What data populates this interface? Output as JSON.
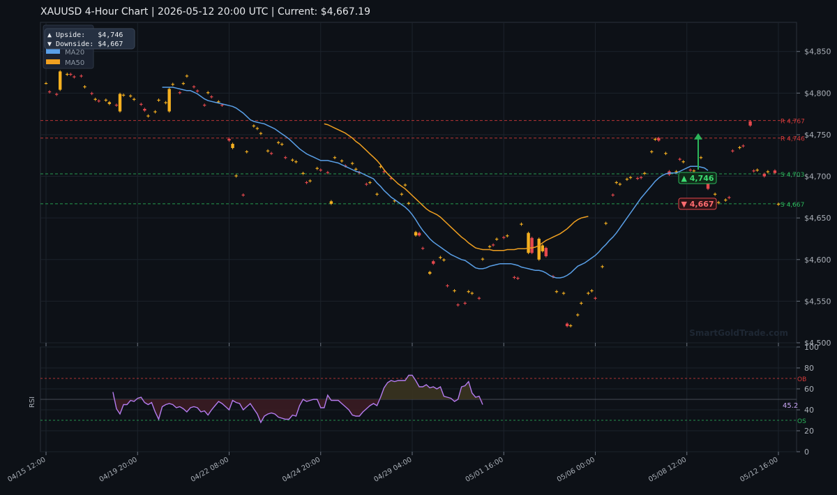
{
  "title": "XAUUSD  4-Hour Chart  |  2026-05-12 20:00 UTC  |  Current: $4,667.19",
  "watermark": "SmartGoldTrade.com",
  "info_box": {
    "upside": "▲ Upside:   $4,746",
    "downside": "▼ Downside: $4,667"
  },
  "legend": {
    "ma20": "MA20",
    "ma50": "MA50"
  },
  "colors": {
    "bg": "#0d1117",
    "grid": "#1c222b",
    "up": "#f5b020",
    "down": "#e5484d",
    "ma20": "#5aa0e8",
    "ma50": "#f0a020",
    "support": "#2bb55a",
    "resistance": "#d83b3b",
    "rsi": "#b57cf0",
    "text": "#aab0b8"
  },
  "chart_data": [
    {
      "type": "candlestick",
      "ylim": [
        4500,
        4885
      ],
      "yticks": [
        4500,
        4550,
        4600,
        4650,
        4700,
        4750,
        4800,
        4850
      ],
      "ytick_labels": [
        "$4,500",
        "$4,550",
        "$4,600",
        "$4,650",
        "$4,700",
        "$4,750",
        "$4,800",
        "$4,850"
      ],
      "xticks": [
        {
          "i": 0,
          "label": "04/15 12:00"
        },
        {
          "i": 26,
          "label": "04/19 20:00"
        },
        {
          "i": 52,
          "label": "04/22 08:00"
        },
        {
          "i": 78,
          "label": "04/24 20:00"
        },
        {
          "i": 104,
          "label": "04/29 04:00"
        },
        {
          "i": 130,
          "label": "05/01 16:00"
        },
        {
          "i": 156,
          "label": "05/06 00:00"
        },
        {
          "i": 182,
          "label": "05/08 12:00"
        },
        {
          "i": 208,
          "label": "05/12 16:00"
        }
      ],
      "closes": [
        4812,
        4801,
        4798,
        4826,
        4823,
        4822,
        4819,
        4820,
        4808,
        4799,
        4793,
        4790,
        4792,
        4789,
        4785,
        4799,
        4798,
        4797,
        4793,
        4786,
        4779,
        4773,
        4778,
        4792,
        4789,
        4805,
        4811,
        4800,
        4812,
        4821,
        4807,
        4802,
        4785,
        4801,
        4795,
        4790,
        4785,
        4743,
        4739,
        4701,
        4677,
        4730,
        4761,
        4758,
        4752,
        4731,
        4727,
        4741,
        4739,
        4722,
        4720,
        4718,
        4704,
        4692,
        4695,
        4710,
        4707,
        4704,
        4670,
        4723,
        4719,
        4712,
        4716,
        4709,
        4704,
        4690,
        4693,
        4679,
        4712,
        4705,
        4697,
        4671,
        4679,
        4690,
        4668,
        4633,
        4629,
        4613,
        4585,
        4595,
        4603,
        4600,
        4568,
        4563,
        4545,
        4547,
        4562,
        4560,
        4553,
        4601,
        4616,
        4617,
        4625,
        4626,
        4629,
        4578,
        4577,
        4643,
        4632,
        4608,
        4625,
        4617,
        4604,
        4579,
        4562,
        4560,
        4520,
        4521,
        4534,
        4548,
        4560,
        4563,
        4553,
        4592,
        4644,
        4677,
        4693,
        4691,
        4697,
        4699,
        4697,
        4698,
        4704,
        4730,
        4745,
        4743,
        4728,
        4702,
        4706,
        4720,
        4718,
        4707,
        4707,
        4723,
        4700,
        4685,
        4679,
        4669,
        4672,
        4674,
        4730,
        4735,
        4736,
        4761,
        4706,
        4708,
        4700,
        4706,
        4704,
        4667
      ],
      "opens": [
        4812,
        4802,
        4799,
        4804,
        4822,
        4823,
        4820,
        4821,
        4807,
        4800,
        4792,
        4791,
        4791,
        4787,
        4786,
        4778,
        4797,
        4796,
        4792,
        4787,
        4781,
        4772,
        4777,
        4791,
        4788,
        4778,
        4810,
        4801,
        4811,
        4820,
        4808,
        4803,
        4786,
        4800,
        4796,
        4789,
        4786,
        4745,
        4734,
        4700,
        4678,
        4729,
        4760,
        4757,
        4751,
        4730,
        4728,
        4740,
        4738,
        4723,
        4719,
        4717,
        4703,
        4693,
        4694,
        4709,
        4708,
        4705,
        4667,
        4722,
        4718,
        4713,
        4715,
        4708,
        4705,
        4691,
        4692,
        4678,
        4711,
        4706,
        4698,
        4670,
        4678,
        4689,
        4667,
        4629,
        4632,
        4614,
        4583,
        4598,
        4602,
        4599,
        4569,
        4562,
        4546,
        4548,
        4561,
        4559,
        4554,
        4600,
        4615,
        4618,
        4624,
        4627,
        4628,
        4579,
        4578,
        4642,
        4608,
        4626,
        4600,
        4610,
        4614,
        4580,
        4561,
        4559,
        4523,
        4520,
        4533,
        4547,
        4559,
        4562,
        4554,
        4591,
        4643,
        4678,
        4692,
        4690,
        4696,
        4698,
        4698,
        4699,
        4703,
        4729,
        4744,
        4746,
        4727,
        4706,
        4706,
        4721,
        4717,
        4708,
        4706,
        4722,
        4701,
        4692,
        4678,
        4668,
        4671,
        4675,
        4731,
        4734,
        4737,
        4766,
        4707,
        4707,
        4703,
        4705,
        4707,
        4666
      ],
      "x_index": [
        0,
        2,
        4,
        6,
        8,
        10,
        12,
        14,
        16,
        18,
        20,
        22,
        24,
        26,
        28,
        30,
        32,
        34,
        36,
        38,
        40,
        42,
        44,
        46,
        48,
        50,
        52,
        54,
        56,
        58,
        60,
        62,
        64,
        66,
        68,
        70,
        72,
        74,
        76,
        78,
        80,
        82,
        84,
        86,
        88,
        90,
        92,
        94,
        96,
        98,
        100,
        102,
        104,
        106,
        108,
        110,
        112,
        114,
        116,
        118,
        120,
        122,
        124,
        126,
        128,
        130,
        132,
        134,
        136,
        138,
        140,
        142,
        144,
        146,
        148,
        150,
        152,
        154,
        156,
        158,
        160,
        162,
        164,
        166,
        168,
        170,
        172,
        174,
        176,
        178,
        180,
        182,
        184,
        186,
        188,
        190,
        192,
        194,
        196,
        198,
        200,
        202,
        204,
        206,
        208,
        210,
        212,
        214,
        216,
        218,
        220,
        222,
        224,
        226,
        228,
        230,
        232,
        234,
        236,
        238,
        240,
        242,
        244,
        246,
        248,
        250,
        252,
        254,
        256,
        258,
        260,
        262,
        264,
        266,
        268,
        270,
        272,
        274,
        276,
        278,
        280,
        282,
        284,
        286,
        288,
        290,
        292,
        294,
        296,
        298
      ],
      "ma20": {
        "start": 33,
        "values": [
          4807,
          4807,
          4807,
          4807,
          4806,
          4805,
          4804,
          4803,
          4803,
          4801,
          4799,
          4796,
          4793,
          4791,
          4790,
          4789,
          4788,
          4787,
          4786,
          4785,
          4784,
          4782,
          4779,
          4776,
          4772,
          4768,
          4766,
          4765,
          4764,
          4763,
          4761,
          4759,
          4757,
          4754,
          4751,
          4748,
          4745,
          4741,
          4737,
          4733,
          4730,
          4727,
          4725,
          4723,
          4721,
          4719,
          4719,
          4719,
          4718,
          4717,
          4716,
          4714,
          4712,
          4710,
          4708,
          4706,
          4705,
          4703,
          4701,
          4699,
          4697,
          4692,
          4688,
          4683,
          4679,
          4675,
          4672,
          4669,
          4666,
          4663,
          4659,
          4654,
          4648,
          4641,
          4635,
          4630,
          4625,
          4621,
          4618,
          4615,
          4612,
          4609,
          4606,
          4604,
          4602,
          4600,
          4599,
          4596,
          4593,
          4590,
          4589,
          4589,
          4590,
          4592,
          4593,
          4594,
          4595,
          4595,
          4595,
          4595,
          4594,
          4593,
          4591,
          4590,
          4589,
          4588,
          4587,
          4587,
          4586,
          4584,
          4581,
          4579,
          4578,
          4578,
          4579,
          4581,
          4584,
          4588,
          4592,
          4594,
          4596,
          4599,
          4602,
          4605,
          4609,
          4614,
          4618,
          4623,
          4627,
          4632,
          4638,
          4644,
          4650,
          4656,
          4662,
          4668,
          4674,
          4679,
          4684,
          4689,
          4694,
          4698,
          4701,
          4703,
          4704,
          4704,
          4704,
          4706,
          4708,
          4710,
          4712,
          4712,
          4712,
          4711,
          4710,
          4707
        ]
      },
      "ma50": {
        "start": 79,
        "values": [
          4763,
          4762,
          4760,
          4758,
          4756,
          4754,
          4752,
          4749,
          4746,
          4742,
          4739,
          4735,
          4731,
          4727,
          4723,
          4719,
          4714,
          4708,
          4703,
          4699,
          4695,
          4691,
          4688,
          4685,
          4681,
          4677,
          4673,
          4669,
          4665,
          4661,
          4658,
          4656,
          4654,
          4651,
          4647,
          4643,
          4639,
          4635,
          4631,
          4627,
          4624,
          4620,
          4617,
          4614,
          4613,
          4612,
          4612,
          4612,
          4611,
          4611,
          4611,
          4611,
          4612,
          4612,
          4612,
          4613,
          4613,
          4613,
          4614,
          4614,
          4615,
          4617,
          4620,
          4623,
          4625,
          4627,
          4629,
          4631,
          4634,
          4637,
          4641,
          4645,
          4648,
          4650,
          4651,
          4652
        ]
      },
      "lines": [
        {
          "value": 4767,
          "label": "R 4,767",
          "kind": "resistance"
        },
        {
          "value": 4746,
          "label": "R 4,746",
          "kind": "resistance"
        },
        {
          "value": 4703,
          "label": "S 4,703",
          "kind": "support"
        },
        {
          "value": 4667,
          "label": "S 4,667",
          "kind": "support"
        }
      ],
      "annotations": {
        "up": "▲ 4,746",
        "down": "▼ 4,667"
      }
    },
    {
      "type": "line",
      "ylabel": "RSI",
      "ylim": [
        0,
        100
      ],
      "yticks": [
        0,
        20,
        40,
        60,
        80,
        100
      ],
      "levels": [
        {
          "value": 70,
          "label": "OB"
        },
        {
          "value": 30,
          "label": "OS"
        },
        {
          "value": 50,
          "label": ""
        }
      ],
      "last_label": "45.2",
      "start": 19,
      "values": [
        57,
        41,
        36,
        45,
        45,
        49,
        48,
        51,
        52,
        47,
        45,
        47,
        38,
        31,
        43,
        45,
        46,
        45,
        42,
        43,
        41,
        38,
        42,
        43,
        42,
        38,
        39,
        35,
        40,
        44,
        48,
        46,
        43,
        40,
        49,
        47,
        46,
        40,
        43,
        46,
        41,
        36,
        28,
        34,
        36,
        37,
        36,
        33,
        32,
        31,
        31,
        35,
        34,
        44,
        50,
        48,
        49,
        50,
        50,
        42,
        42,
        54,
        49,
        49,
        49,
        46,
        43,
        40,
        35,
        34,
        34,
        38,
        41,
        44,
        46,
        44,
        52,
        61,
        66,
        68,
        67,
        68,
        68,
        68,
        73,
        73,
        68,
        62,
        62,
        64,
        61,
        62,
        60,
        62,
        53,
        52,
        51,
        48,
        50,
        62,
        63,
        67,
        56,
        52,
        53,
        45
      ]
    }
  ]
}
